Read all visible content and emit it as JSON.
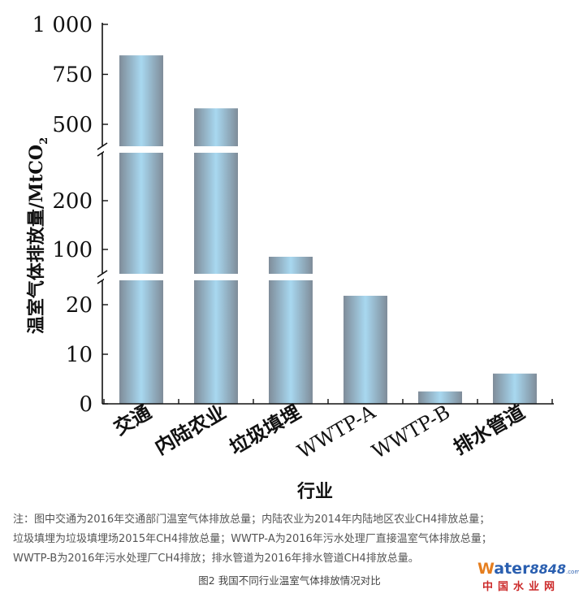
{
  "chart_data": {
    "type": "bar",
    "ylabel": "温室气体排放量/MtCO",
    "ylabel_sub": "2",
    "xlabel": "行业",
    "categories": [
      "交通",
      "内陆农业",
      "垃圾填埋",
      "WWTP-A",
      "WWTP-B",
      "排水管道"
    ],
    "values": [
      845,
      580,
      85,
      21.8,
      2.5,
      6.1
    ],
    "y_segments": [
      {
        "range": [
          0,
          25
        ],
        "ticks": [
          0,
          10,
          20
        ],
        "tick_labels": [
          "0",
          "10",
          "20"
        ]
      },
      {
        "range": [
          50,
          300
        ],
        "ticks": [
          100,
          200
        ],
        "tick_labels": [
          "100",
          "200"
        ]
      },
      {
        "range": [
          400,
          1000
        ],
        "ticks": [
          500,
          750,
          1000
        ],
        "tick_labels": [
          "500",
          "750",
          "1 000"
        ]
      }
    ],
    "axis_breaks": 2,
    "bar_color_edge": "#7f8c99",
    "bar_color_center": "#a8d8f0"
  },
  "notes": [
    "注：图中交通为2016年交通部门温室气体排放总量；内陆农业为2014年内陆地区农业CH4排放总量；",
    "垃圾填埋为垃圾填埋场2015年CH4排放总量；WWTP-A为2016年污水处理厂直接温室气体排放总量；",
    "WWTP-B为2016年污水处理厂CH4排放；排水管道为2016年排水管道CH4排放总量。"
  ],
  "caption": "图2 我国不同行业温室气体排放情况对比",
  "logo": {
    "w": "W",
    "ater": "ater",
    "num": "8848",
    "com": ".com",
    "cn": "中国水业网"
  }
}
